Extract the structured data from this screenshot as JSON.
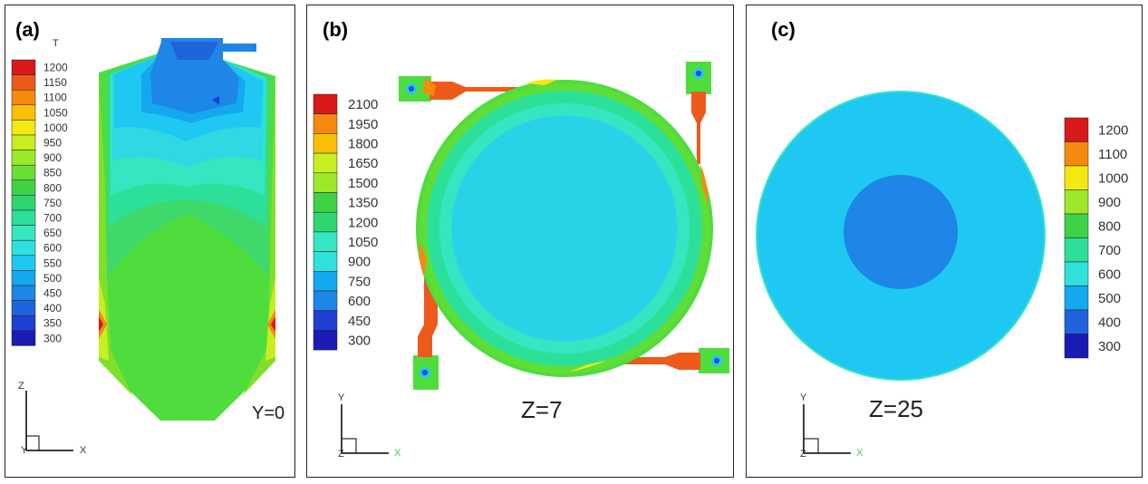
{
  "panels": [
    {
      "label": "(a)",
      "variable": "T",
      "section": "Y=0",
      "legend": [
        "1200",
        "1150",
        "1100",
        "1050",
        "1000",
        "950",
        "900",
        "850",
        "800",
        "750",
        "700",
        "650",
        "600",
        "550",
        "500",
        "450",
        "400",
        "350",
        "300"
      ],
      "axes": {
        "vertical": "Z",
        "horizontal": "X",
        "corner": "Y"
      }
    },
    {
      "label": "(b)",
      "section": "Z=7",
      "legend": [
        "2100",
        "1950",
        "1800",
        "1650",
        "1500",
        "1350",
        "1200",
        "1050",
        "900",
        "750",
        "600",
        "450",
        "300"
      ],
      "axes": {
        "vertical": "Y",
        "horizontal": "X",
        "corner": "Z"
      }
    },
    {
      "label": "(c)",
      "section": "Z=25",
      "legend": [
        "1200",
        "1100",
        "1000",
        "900",
        "800",
        "700",
        "600",
        "500",
        "400",
        "300"
      ],
      "axes": {
        "vertical": "Y",
        "horizontal": "X",
        "corner": "Z"
      }
    }
  ],
  "colors": {
    "scale": [
      "#d7191c",
      "#ee5a1a",
      "#f58a0e",
      "#fbbf0a",
      "#f3e80f",
      "#c8ee22",
      "#9ee82c",
      "#6cdd36",
      "#3fd245",
      "#2ed670",
      "#2de09a",
      "#36e6c0",
      "#2fe0dc",
      "#1fc8f2",
      "#14a8ee",
      "#1d86e6",
      "#1f64dc",
      "#1f3fd2",
      "#1a1ab4"
    ],
    "axis_x_green": "#3ad43a"
  }
}
